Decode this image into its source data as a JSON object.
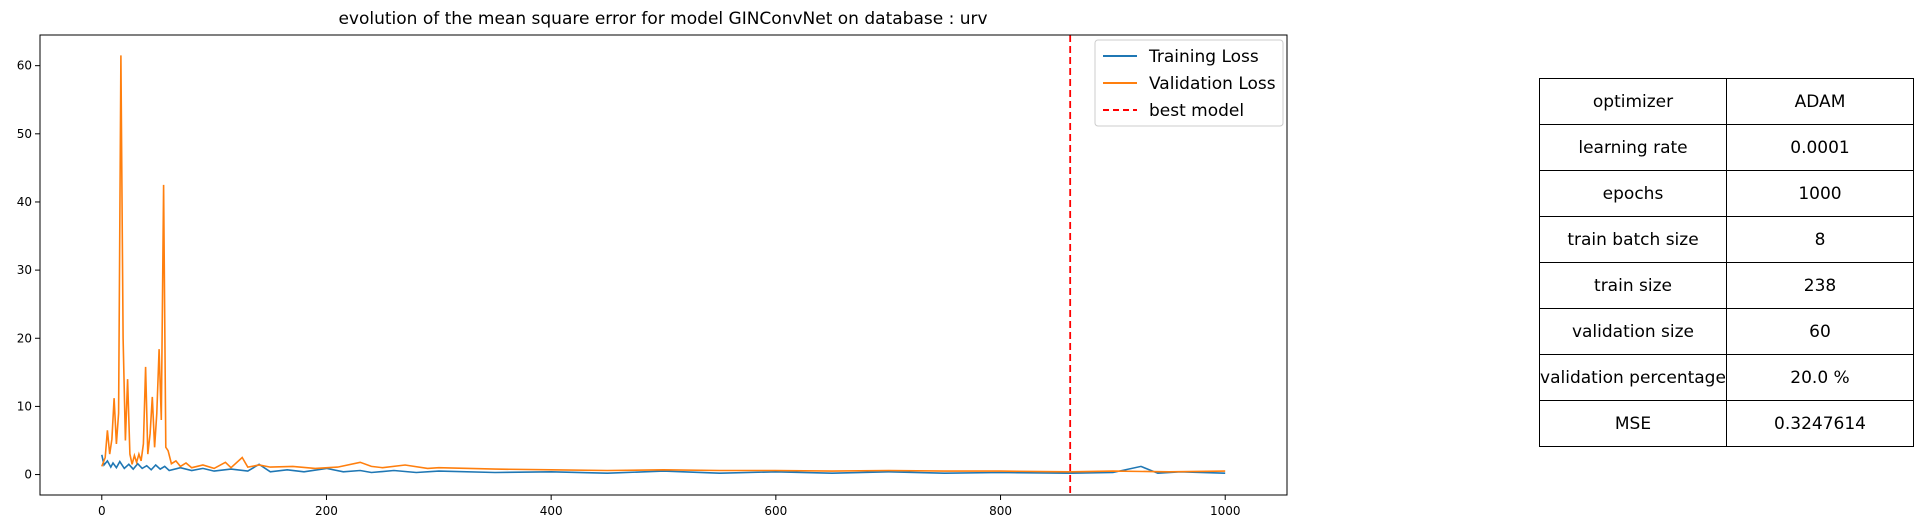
{
  "chart_data": {
    "type": "line",
    "title": "evolution of the mean square error for model GINConvNet on database : urv",
    "xlabel": "",
    "ylabel": "",
    "xlim": [
      -55,
      1055
    ],
    "ylim": [
      -3,
      64.5
    ],
    "xticks": [
      0,
      200,
      400,
      600,
      800,
      1000
    ],
    "yticks": [
      0,
      10,
      20,
      30,
      40,
      50,
      60
    ],
    "grid": false,
    "legend": "top-right",
    "series": [
      {
        "name": "Training Loss",
        "color": "#1f77b4",
        "points": [
          [
            0,
            2.9
          ],
          [
            2,
            1.4
          ],
          [
            5,
            2.0
          ],
          [
            8,
            1.1
          ],
          [
            10,
            1.7
          ],
          [
            13,
            1.0
          ],
          [
            16,
            1.9
          ],
          [
            20,
            0.9
          ],
          [
            24,
            1.5
          ],
          [
            28,
            0.8
          ],
          [
            32,
            1.6
          ],
          [
            36,
            0.9
          ],
          [
            40,
            1.3
          ],
          [
            44,
            0.7
          ],
          [
            48,
            1.4
          ],
          [
            52,
            0.8
          ],
          [
            56,
            1.2
          ],
          [
            60,
            0.6
          ],
          [
            70,
            1.0
          ],
          [
            80,
            0.6
          ],
          [
            90,
            0.9
          ],
          [
            100,
            0.5
          ],
          [
            115,
            0.8
          ],
          [
            130,
            0.5
          ],
          [
            140,
            1.5
          ],
          [
            150,
            0.4
          ],
          [
            165,
            0.7
          ],
          [
            180,
            0.4
          ],
          [
            200,
            0.9
          ],
          [
            215,
            0.4
          ],
          [
            230,
            0.6
          ],
          [
            240,
            0.3
          ],
          [
            260,
            0.6
          ],
          [
            280,
            0.3
          ],
          [
            300,
            0.5
          ],
          [
            350,
            0.3
          ],
          [
            400,
            0.4
          ],
          [
            450,
            0.2
          ],
          [
            500,
            0.5
          ],
          [
            550,
            0.2
          ],
          [
            600,
            0.4
          ],
          [
            650,
            0.2
          ],
          [
            700,
            0.4
          ],
          [
            750,
            0.2
          ],
          [
            800,
            0.3
          ],
          [
            862,
            0.2
          ],
          [
            900,
            0.3
          ],
          [
            925,
            1.2
          ],
          [
            940,
            0.2
          ],
          [
            960,
            0.4
          ],
          [
            1000,
            0.2
          ]
        ]
      },
      {
        "name": "Validation Loss",
        "color": "#ff7f0e",
        "points": [
          [
            0,
            1.2
          ],
          [
            3,
            2.5
          ],
          [
            5,
            6.5
          ],
          [
            7,
            3.0
          ],
          [
            9,
            5.2
          ],
          [
            11,
            11.2
          ],
          [
            13,
            4.5
          ],
          [
            15,
            9.0
          ],
          [
            17,
            61.5
          ],
          [
            19,
            20.0
          ],
          [
            21,
            5.0
          ],
          [
            23,
            14.0
          ],
          [
            25,
            3.0
          ],
          [
            27,
            1.5
          ],
          [
            29,
            2.8
          ],
          [
            31,
            1.8
          ],
          [
            33,
            3.0
          ],
          [
            35,
            2.0
          ],
          [
            37,
            4.5
          ],
          [
            39,
            15.8
          ],
          [
            41,
            3.0
          ],
          [
            43,
            6.0
          ],
          [
            45,
            11.4
          ],
          [
            47,
            4.0
          ],
          [
            49,
            9.0
          ],
          [
            51,
            18.4
          ],
          [
            53,
            8.0
          ],
          [
            55,
            42.5
          ],
          [
            57,
            4.0
          ],
          [
            59,
            3.5
          ],
          [
            62,
            1.6
          ],
          [
            66,
            2.0
          ],
          [
            70,
            1.2
          ],
          [
            75,
            1.7
          ],
          [
            80,
            1.0
          ],
          [
            90,
            1.4
          ],
          [
            100,
            0.9
          ],
          [
            110,
            1.8
          ],
          [
            115,
            1.0
          ],
          [
            125,
            2.5
          ],
          [
            130,
            1.1
          ],
          [
            140,
            1.4
          ],
          [
            150,
            1.1
          ],
          [
            170,
            1.2
          ],
          [
            190,
            0.9
          ],
          [
            210,
            1.1
          ],
          [
            230,
            1.8
          ],
          [
            240,
            1.2
          ],
          [
            250,
            1.0
          ],
          [
            270,
            1.4
          ],
          [
            290,
            0.9
          ],
          [
            300,
            1.0
          ],
          [
            350,
            0.8
          ],
          [
            400,
            0.7
          ],
          [
            450,
            0.6
          ],
          [
            500,
            0.7
          ],
          [
            550,
            0.6
          ],
          [
            600,
            0.6
          ],
          [
            650,
            0.5
          ],
          [
            700,
            0.6
          ],
          [
            750,
            0.5
          ],
          [
            800,
            0.5
          ],
          [
            862,
            0.4
          ],
          [
            900,
            0.5
          ],
          [
            950,
            0.4
          ],
          [
            1000,
            0.5
          ]
        ]
      }
    ],
    "best_model": {
      "name": "best model",
      "x": 862,
      "color": "#ff0000",
      "style": "dashed"
    }
  },
  "params_table": {
    "rows": [
      [
        "optimizer",
        "ADAM"
      ],
      [
        "learning rate",
        "0.0001"
      ],
      [
        "epochs",
        "1000"
      ],
      [
        "train batch size",
        "8"
      ],
      [
        "train size",
        "238"
      ],
      [
        "validation size",
        "60"
      ],
      [
        "validation percentage",
        "20.0 %"
      ],
      [
        "MSE",
        "0.3247614"
      ]
    ]
  }
}
